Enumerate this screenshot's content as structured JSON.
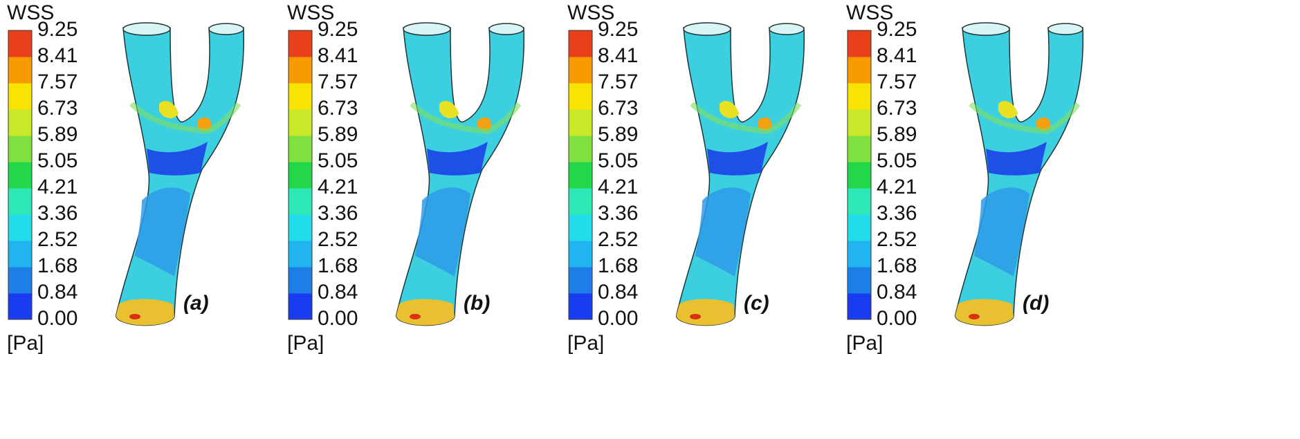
{
  "colorbar": {
    "title": "WSS",
    "unit": "[Pa]",
    "ticks": [
      "0.00",
      "0.84",
      "1.68",
      "2.52",
      "3.36",
      "4.21",
      "5.05",
      "5.89",
      "6.73",
      "7.57",
      "8.41",
      "9.25"
    ],
    "colors": [
      "#1a3cf0",
      "#1e7ee8",
      "#20b4f0",
      "#22dcec",
      "#2ee8b8",
      "#22d848",
      "#80e040",
      "#c8e828",
      "#f8e400",
      "#f89a00",
      "#e8401a"
    ]
  },
  "panels": [
    {
      "label": "(a)"
    },
    {
      "label": "(b)"
    },
    {
      "label": "(c)"
    },
    {
      "label": "(d)"
    }
  ]
}
